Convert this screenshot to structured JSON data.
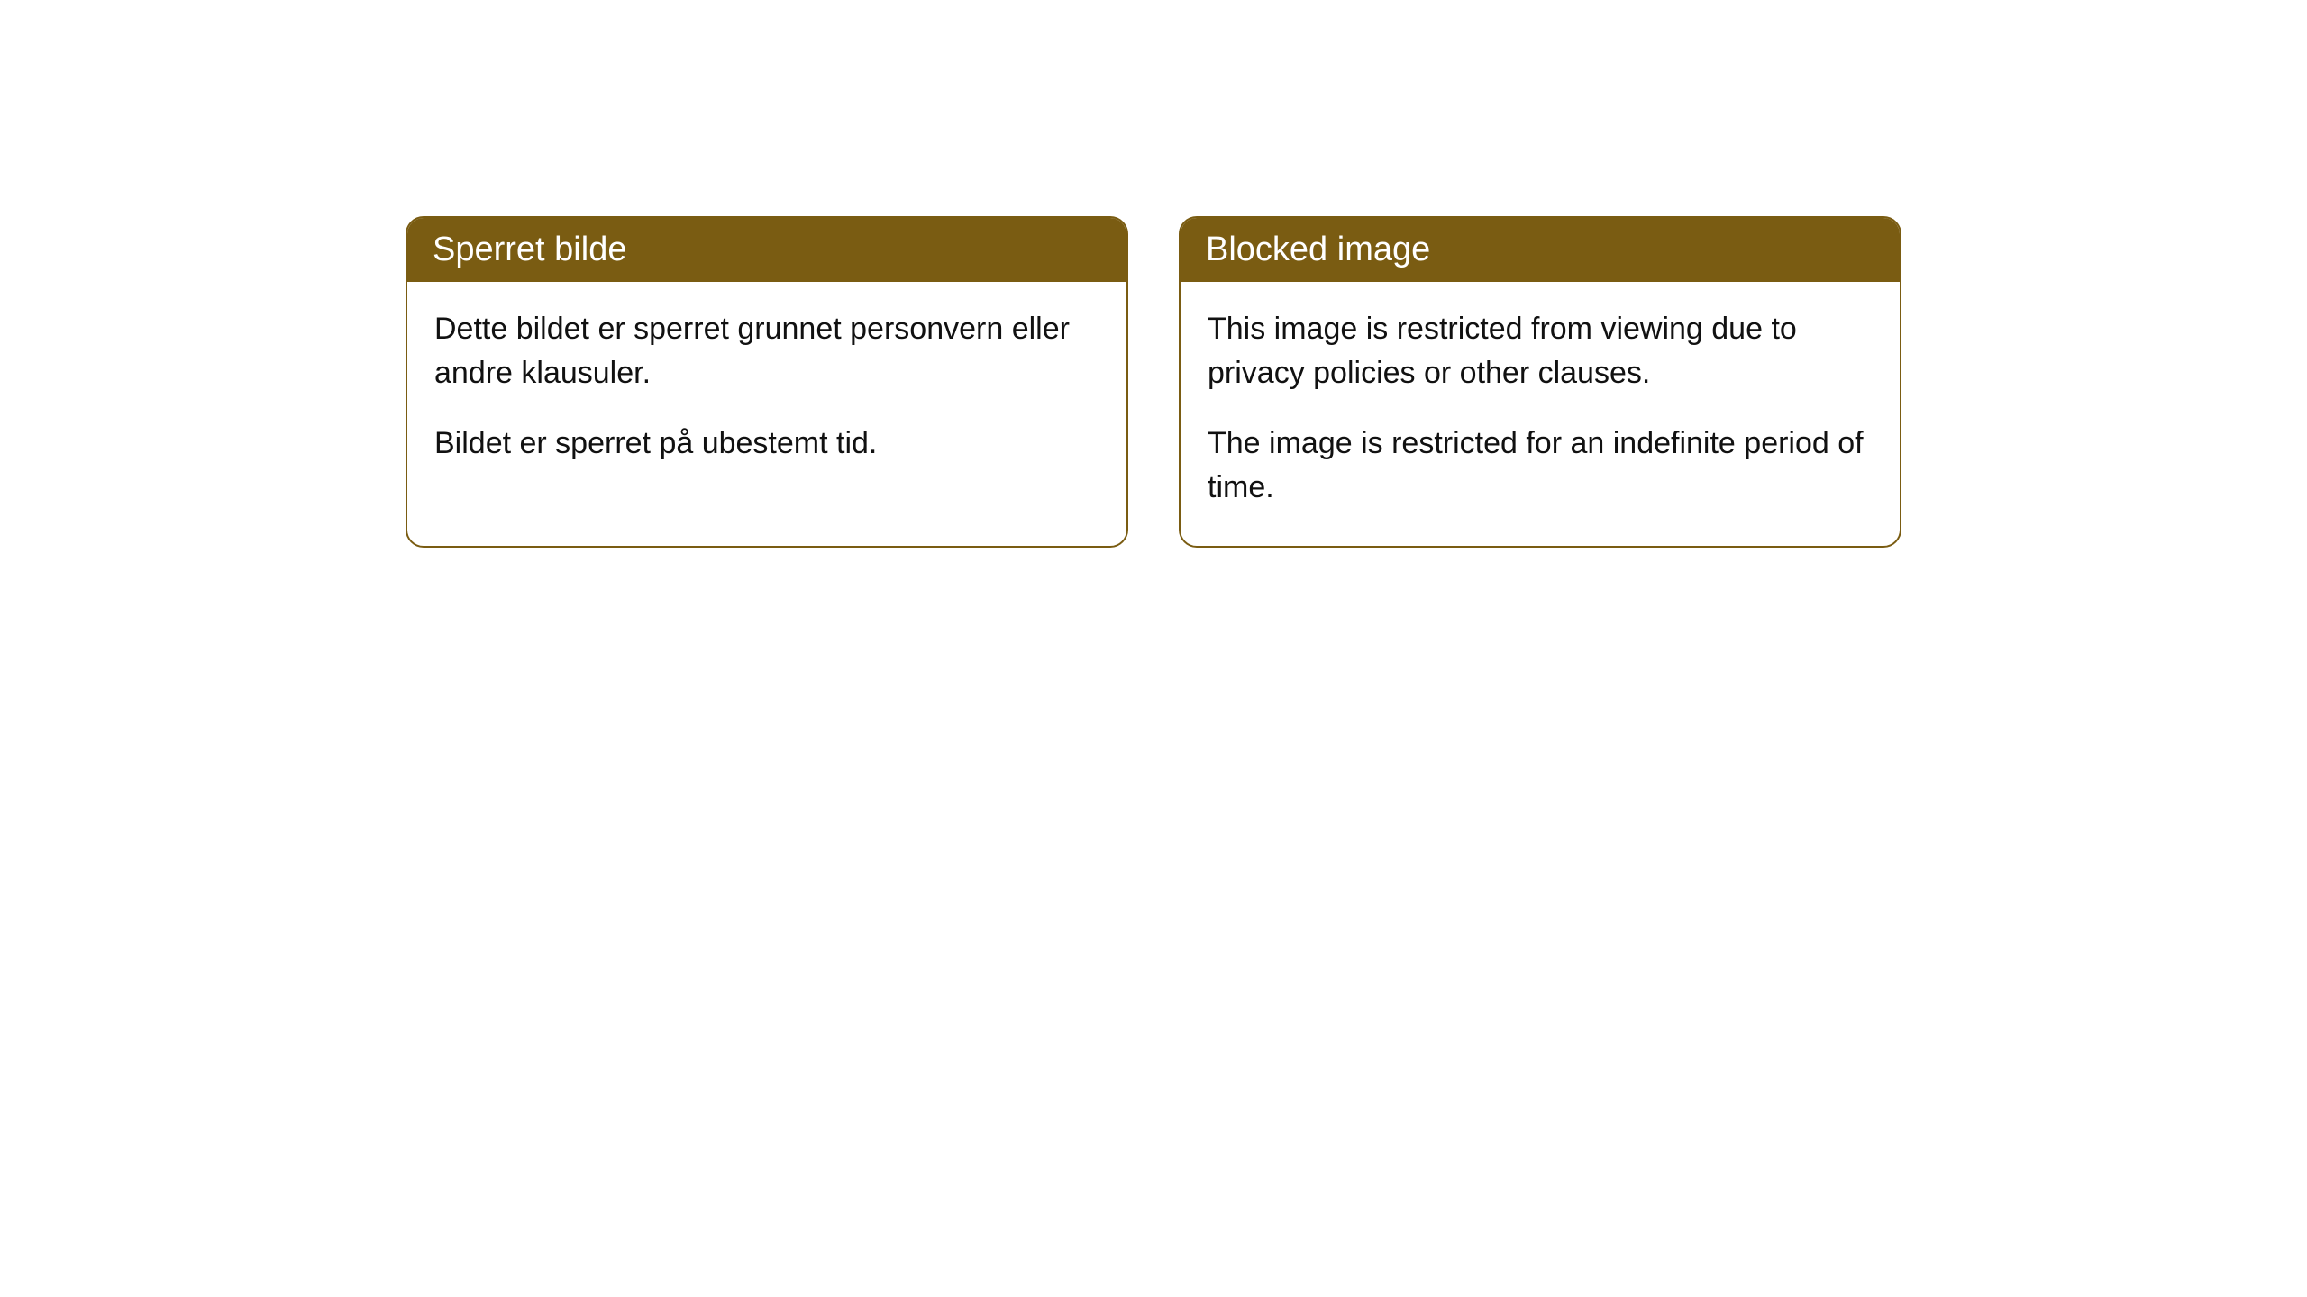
{
  "cards": [
    {
      "header": "Sperret bilde",
      "para1": "Dette bildet er sperret grunnet personvern eller andre klausuler.",
      "para2": "Bildet er sperret på ubestemt tid."
    },
    {
      "header": "Blocked image",
      "para1": "This image is restricted from viewing due to privacy policies or other clauses.",
      "para2": "The image is restricted for an indefinite period of time."
    }
  ],
  "style": {
    "header_bg": "#7a5c12",
    "header_fg": "#ffffff",
    "border_color": "#7a5c12",
    "body_bg": "#ffffff",
    "body_fg": "#111111",
    "border_radius": 20,
    "header_fontsize": 38,
    "body_fontsize": 34
  }
}
